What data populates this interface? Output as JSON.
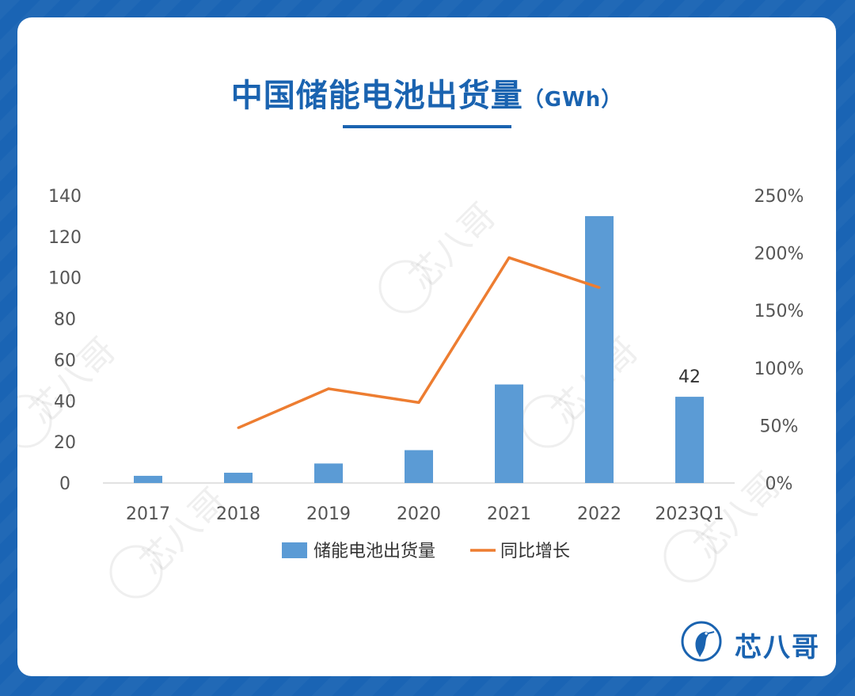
{
  "page": {
    "title": "中国储能电池出货量",
    "unit": "（GWh）",
    "brand_name": "芯八哥",
    "watermark_text": "芯八哥",
    "colors": {
      "background": "#1a64b4",
      "title": "#1a63b0",
      "bar": "#5b9bd5",
      "line": "#ed7d31",
      "axis_text": "#555555"
    }
  },
  "chart_data": {
    "type": "bar",
    "categories": [
      "2017",
      "2018",
      "2019",
      "2020",
      "2021",
      "2022",
      "2023Q1"
    ],
    "series": [
      {
        "name": "储能电池出货量",
        "type": "bar",
        "axis": "left",
        "values": [
          3.5,
          5,
          9.5,
          16,
          48,
          130,
          42
        ]
      },
      {
        "name": "同比增长",
        "type": "line",
        "axis": "right",
        "values": [
          null,
          0.48,
          0.82,
          0.7,
          1.96,
          1.7,
          null
        ]
      }
    ],
    "data_labels": [
      {
        "category": "2023Q1",
        "series": "储能电池出货量",
        "label": "42"
      }
    ],
    "ylim": [
      0,
      140
    ],
    "yticks": [
      0,
      20,
      40,
      60,
      80,
      100,
      120,
      140
    ],
    "y2lim": [
      0,
      2.5
    ],
    "y2ticks": [
      "0%",
      "50%",
      "100%",
      "150%",
      "200%",
      "250%"
    ],
    "grid": false,
    "legend_position": "bottom"
  }
}
